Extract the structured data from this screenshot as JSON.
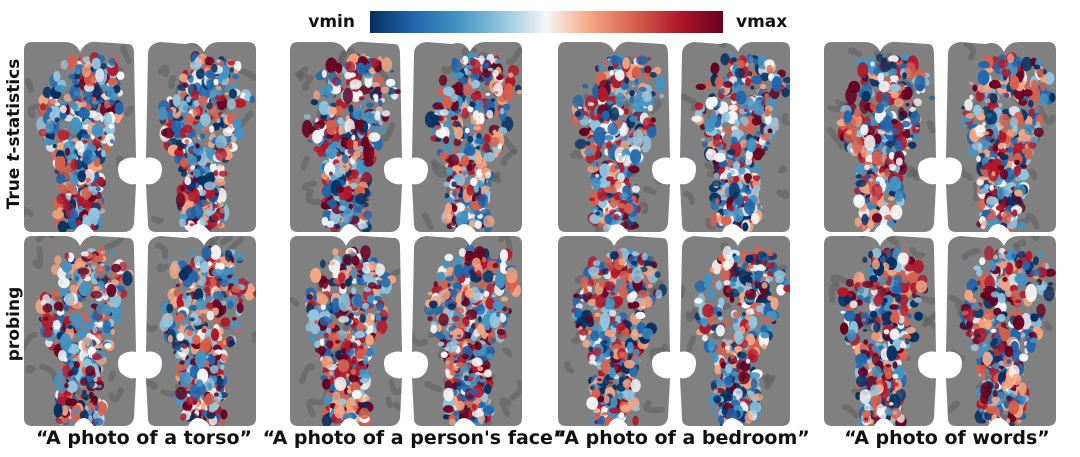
{
  "colorbar": {
    "min_label": "vmin",
    "max_label": "vmax",
    "colors": [
      "#053061",
      "#2166ac",
      "#4393c3",
      "#92c5de",
      "#f7f7f7",
      "#f4a582",
      "#d6604d",
      "#b2182b",
      "#67001f"
    ]
  },
  "rows": [
    {
      "label_pre": "True ",
      "label_italic": "t",
      "label_post": "-statistics"
    },
    {
      "label_pre": "probing",
      "label_italic": "",
      "label_post": ""
    }
  ],
  "columns": [
    {
      "caption": "“A photo of a torso”"
    },
    {
      "caption": "“A photo of a person's face”"
    },
    {
      "caption": "“A photo of a bedroom”"
    },
    {
      "caption": "“A photo of words”"
    }
  ]
}
